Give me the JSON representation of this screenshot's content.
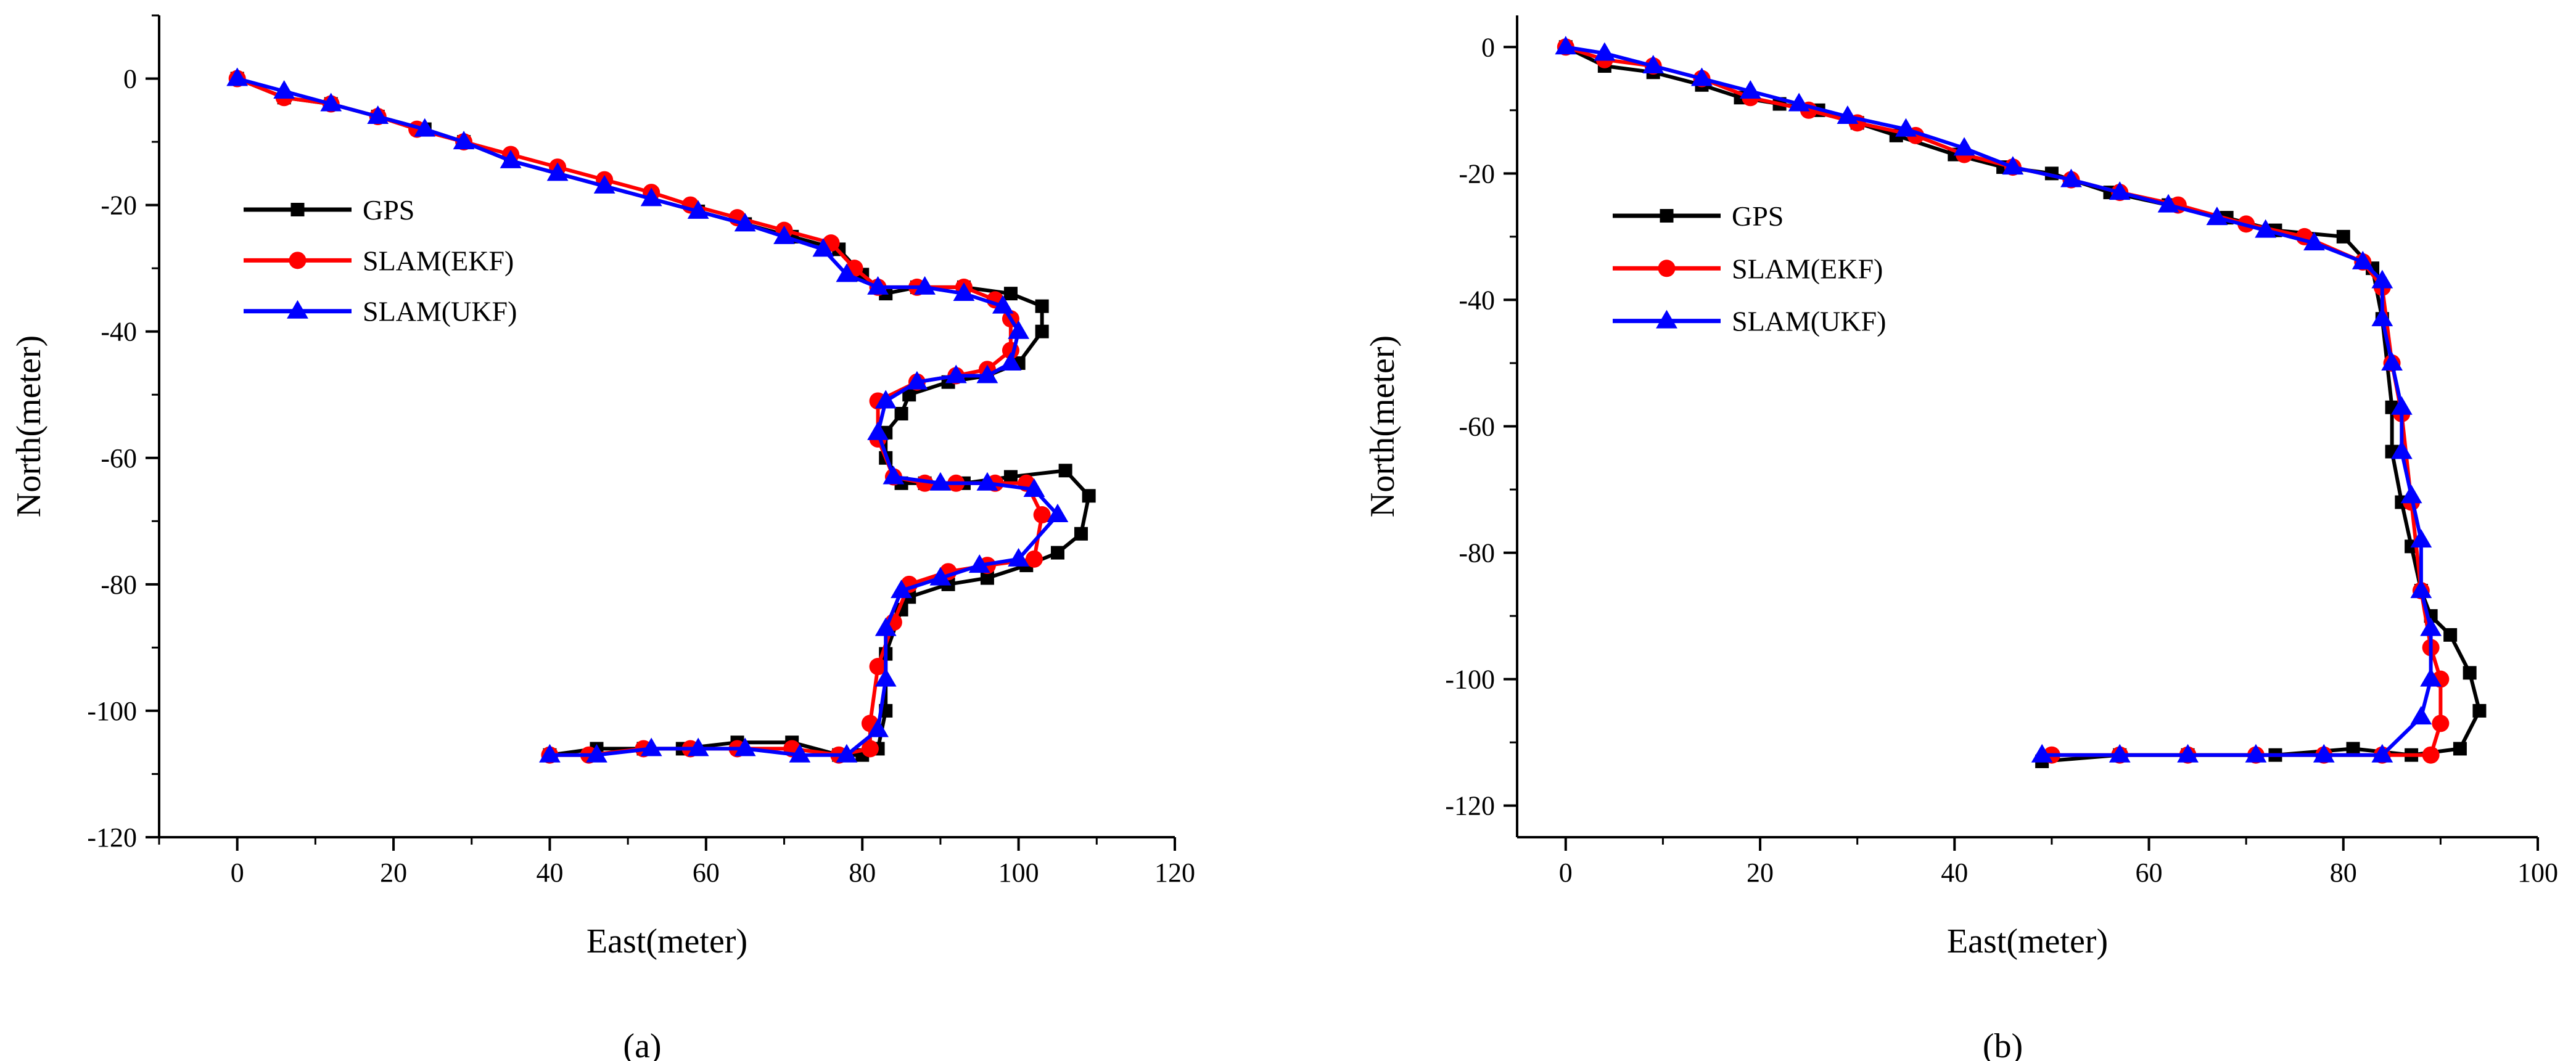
{
  "legend_symbols": {
    "square": "square-marker",
    "circle": "circle-marker",
    "triangle": "triangle-marker"
  },
  "chart_data": [
    {
      "type": "line",
      "caption": "(a)",
      "xlabel": "East(meter)",
      "ylabel": "North(meter)",
      "xlim": [
        -10,
        120
      ],
      "ylim": [
        -120,
        10
      ],
      "xticks": [
        0,
        20,
        40,
        60,
        80,
        100,
        120
      ],
      "yticks": [
        0,
        -20,
        -40,
        -60,
        -80,
        -100,
        -120
      ],
      "grid": false,
      "legend": "upper-left",
      "series": [
        {
          "name": "GPS",
          "color": "#000000",
          "marker": "square",
          "x": [
            0,
            6,
            12,
            18,
            24,
            29,
            35,
            41,
            47,
            53,
            59,
            65,
            71,
            77,
            80,
            83,
            87,
            93,
            99,
            103,
            103,
            100,
            96,
            91,
            86,
            85,
            83,
            83,
            85,
            88,
            93,
            99,
            106,
            109,
            108,
            105,
            101,
            96,
            91,
            86,
            85,
            83,
            83,
            82,
            80,
            77,
            71,
            64,
            57,
            52,
            46,
            40
          ],
          "y": [
            0,
            -3,
            -4,
            -6,
            -8,
            -10,
            -13,
            -15,
            -17,
            -19,
            -21,
            -23,
            -25,
            -27,
            -31,
            -34,
            -33,
            -33,
            -34,
            -36,
            -40,
            -45,
            -47,
            -48,
            -50,
            -53,
            -56,
            -60,
            -64,
            -64,
            -64,
            -63,
            -62,
            -66,
            -72,
            -75,
            -77,
            -79,
            -80,
            -82,
            -84,
            -91,
            -100,
            -106,
            -107,
            -107,
            -105,
            -105,
            -106,
            -106,
            -106,
            -107
          ]
        },
        {
          "name": "SLAM(EKF)",
          "color": "#ff0000",
          "marker": "circle",
          "x": [
            0,
            6,
            12,
            18,
            23,
            29,
            35,
            41,
            47,
            53,
            58,
            64,
            70,
            76,
            79,
            82,
            87,
            93,
            97,
            99,
            99,
            96,
            92,
            87,
            82,
            82,
            84,
            88,
            92,
            97,
            101,
            103,
            102,
            96,
            91,
            86,
            84,
            82,
            81,
            81,
            77,
            71,
            64,
            58,
            52,
            45,
            40
          ],
          "y": [
            0,
            -3,
            -4,
            -6,
            -8,
            -10,
            -12,
            -14,
            -16,
            -18,
            -20,
            -22,
            -24,
            -26,
            -30,
            -33,
            -33,
            -33,
            -35,
            -38,
            -43,
            -46,
            -47,
            -48,
            -51,
            -57,
            -63,
            -64,
            -64,
            -64,
            -64,
            -69,
            -76,
            -77,
            -78,
            -80,
            -86,
            -93,
            -102,
            -106,
            -107,
            -106,
            -106,
            -106,
            -106,
            -107,
            -107
          ]
        },
        {
          "name": "SLAM(UKF)",
          "color": "#0000ff",
          "marker": "triangle",
          "x": [
            0,
            6,
            12,
            18,
            24,
            29,
            35,
            41,
            47,
            53,
            59,
            65,
            70,
            75,
            78,
            82,
            88,
            93,
            98,
            100,
            99,
            96,
            92,
            87,
            83,
            82,
            84,
            90,
            96,
            102,
            105,
            100,
            95,
            90,
            85,
            83,
            83,
            82,
            78,
            72,
            65,
            59,
            53,
            46,
            40
          ],
          "y": [
            0,
            -2,
            -4,
            -6,
            -8,
            -10,
            -13,
            -15,
            -17,
            -19,
            -21,
            -23,
            -25,
            -27,
            -31,
            -33,
            -33,
            -34,
            -36,
            -40,
            -45,
            -47,
            -47,
            -48,
            -51,
            -56,
            -63,
            -64,
            -64,
            -65,
            -69,
            -76,
            -77,
            -79,
            -81,
            -87,
            -95,
            -103,
            -107,
            -107,
            -106,
            -106,
            -106,
            -107,
            -107
          ]
        }
      ]
    },
    {
      "type": "line",
      "caption": "(b)",
      "xlabel": "East(meter)",
      "ylabel": "North(meter)",
      "xlim": [
        -5,
        100
      ],
      "ylim": [
        -125,
        5
      ],
      "xticks": [
        0,
        20,
        40,
        60,
        80,
        100
      ],
      "yticks": [
        0,
        -20,
        -40,
        -60,
        -80,
        -100,
        -120
      ],
      "grid": false,
      "legend": "upper-left",
      "series": [
        {
          "name": "GPS",
          "color": "#000000",
          "marker": "square",
          "x": [
            0,
            4,
            9,
            14,
            18,
            22,
            26,
            30,
            34,
            40,
            45,
            50,
            56,
            62,
            68,
            73,
            80,
            83,
            84,
            85,
            85,
            86,
            87,
            88,
            89,
            91,
            93,
            94,
            92,
            87,
            81,
            73,
            64,
            57,
            49
          ],
          "y": [
            0,
            -3,
            -4,
            -6,
            -8,
            -9,
            -10,
            -12,
            -14,
            -17,
            -19,
            -20,
            -23,
            -25,
            -27,
            -29,
            -30,
            -35,
            -43,
            -57,
            -64,
            -72,
            -79,
            -86,
            -90,
            -93,
            -99,
            -105,
            -111,
            -112,
            -111,
            -112,
            -112,
            -112,
            -113
          ]
        },
        {
          "name": "SLAM(EKF)",
          "color": "#ff0000",
          "marker": "circle",
          "x": [
            0,
            4,
            9,
            14,
            19,
            25,
            30,
            36,
            41,
            46,
            52,
            57,
            63,
            70,
            76,
            82,
            84,
            85,
            86,
            87,
            88,
            89,
            90,
            90,
            89,
            84,
            78,
            71,
            64,
            57,
            50
          ],
          "y": [
            0,
            -2,
            -3,
            -5,
            -8,
            -10,
            -12,
            -14,
            -17,
            -19,
            -21,
            -23,
            -25,
            -28,
            -30,
            -34,
            -38,
            -50,
            -58,
            -72,
            -86,
            -95,
            -100,
            -107,
            -112,
            -112,
            -112,
            -112,
            -112,
            -112,
            -112
          ]
        },
        {
          "name": "SLAM(UKF)",
          "color": "#0000ff",
          "marker": "triangle",
          "x": [
            0,
            4,
            9,
            14,
            19,
            24,
            29,
            35,
            41,
            46,
            52,
            57,
            62,
            67,
            72,
            77,
            82,
            84,
            84,
            85,
            86,
            86,
            87,
            88,
            88,
            89,
            89,
            88,
            84,
            78,
            71,
            64,
            57,
            49
          ],
          "y": [
            0,
            -1,
            -3,
            -5,
            -7,
            -9,
            -11,
            -13,
            -16,
            -19,
            -21,
            -23,
            -25,
            -27,
            -29,
            -31,
            -34,
            -37,
            -43,
            -50,
            -57,
            -64,
            -71,
            -78,
            -86,
            -92,
            -100,
            -106,
            -112,
            -112,
            -112,
            -112,
            -112,
            -112
          ]
        }
      ]
    }
  ]
}
